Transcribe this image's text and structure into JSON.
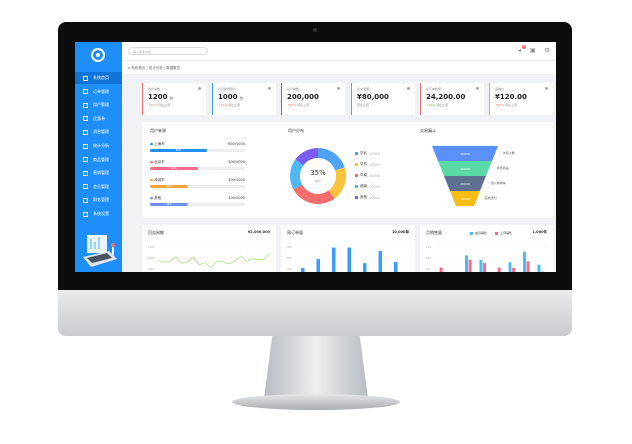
{
  "sidebar": {
    "items": [
      "系统首页",
      "订单管理",
      "用户管理",
      "优惠券",
      "消息管理",
      "统计分析",
      "商品管理",
      "营销管理",
      "会员管理",
      "财务管理",
      "系统设置"
    ]
  },
  "header": {
    "search_placeholder": "输入搜索内容",
    "notification_count": "5"
  },
  "breadcrumb": "系统首页 / 统计分析 / 数据概览",
  "cards": [
    {
      "label": "用户总数",
      "value": "1200",
      "unit": "位",
      "trend": "↑10%",
      "compare": "同比上周",
      "color": "#f56c6c"
    },
    {
      "label": "今日新增用户",
      "value": "1000",
      "unit": "位",
      "trend": "↑10%",
      "compare": "同比上周",
      "color": "#409eff"
    },
    {
      "label": "总订单数",
      "value": "200,000",
      "unit": "",
      "trend": "↑10%",
      "compare": "同比上周",
      "color": "#7b5cf5"
    },
    {
      "label": "总交易额",
      "value": "¥80,000",
      "unit": "",
      "trend": "",
      "compare": "同比上周",
      "color": "#67c23a"
    },
    {
      "label": "总订单数量",
      "value": "24,200.00",
      "unit": "",
      "trend": "↓10%",
      "compare": "同比上周",
      "color": "#f56c6c"
    },
    {
      "label": "客单价",
      "value": "¥120.00",
      "unit": "",
      "trend": "↑10%",
      "compare": "同比上周",
      "color": "#f5a340"
    }
  ],
  "source": {
    "title": "用户来源",
    "items": [
      {
        "name": "上海市",
        "value": "600/1000",
        "percent": 60,
        "color": "#1e8ffa"
      },
      {
        "name": "北京市",
        "value": "500/1000",
        "percent": 50,
        "color": "#f56c8a"
      },
      {
        "name": "深圳市",
        "value": "400/1000",
        "percent": 40,
        "color": "#f5a340"
      },
      {
        "name": "其他",
        "value": "400/1000",
        "percent": 40,
        "color": "#6c8ef5"
      }
    ]
  },
  "distribution": {
    "title": "用户分布",
    "center_value": "35%",
    "center_label": "总计",
    "items": [
      {
        "name": "华北",
        "value": "10000",
        "share": 20,
        "color": "#4da3f5"
      },
      {
        "name": "华东",
        "value": "10000",
        "share": 20,
        "color": "#fcc23c"
      },
      {
        "name": "华南",
        "value": "10000",
        "share": 27,
        "color": "#f56c6c"
      },
      {
        "name": "西南",
        "value": "10000",
        "share": 18,
        "color": "#4db8f5"
      },
      {
        "name": "其他",
        "value": "10000",
        "share": 15,
        "color": "#7b5cf5"
      }
    ]
  },
  "funnel": {
    "title": "交易漏斗",
    "stages": [
      {
        "value": "20000",
        "label": "访问人数",
        "color": "#5b8ff9"
      },
      {
        "value": "20000",
        "label": "浏览商品",
        "color": "#5ad8a6"
      },
      {
        "value": "20000",
        "label": "加入购物车",
        "color": "#5d7092"
      },
      {
        "value": "10000",
        "label": "完成支付",
        "color": "#f6bd16"
      }
    ]
  },
  "daily": {
    "title": "日交易额",
    "total": "¥2,000,000",
    "yticks": [
      "1000",
      "1500",
      "2000"
    ],
    "values": [
      40,
      35,
      38,
      50,
      32,
      36,
      48,
      28,
      34,
      20,
      38,
      36,
      30,
      38,
      52,
      36,
      44,
      42,
      42,
      60
    ],
    "color": "#95de64"
  },
  "weekly": {
    "title": "周订单量",
    "total": "10,000单",
    "yticks": [
      "900",
      "600",
      "300"
    ],
    "values": [
      220,
      510,
      880,
      880,
      380,
      770,
      420
    ],
    "color": "#3a9bfa"
  },
  "monthly": {
    "title": "月销售量",
    "total": "1,000件",
    "legend": [
      "本月销售",
      "上月销售"
    ],
    "yticks": [
      "150",
      "100",
      "50"
    ],
    "series": [
      [
        0,
        0,
        105,
        80,
        10,
        68,
        125,
        55
      ],
      [
        40,
        0,
        82,
        65,
        40,
        38,
        74,
        18
      ]
    ],
    "colors": [
      "#4dbbf5",
      "#f56c8a"
    ]
  }
}
